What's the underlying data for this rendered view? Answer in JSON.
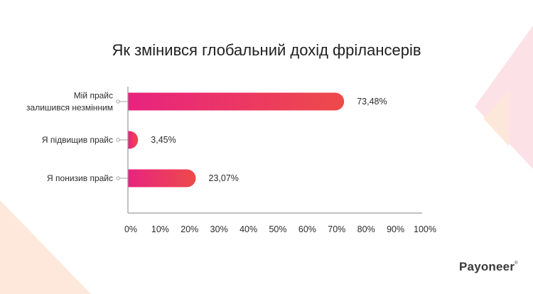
{
  "chart_data": {
    "type": "bar",
    "orientation": "horizontal",
    "title": "Як змінився глобальний дохід фрілансерів",
    "xlabel": "",
    "ylabel": "",
    "categories": [
      [
        "Мій прайс",
        "залишився незмінним"
      ],
      [
        "Я підвищив прайс"
      ],
      [
        "Я понизив прайс"
      ]
    ],
    "values": [
      73.48,
      3.45,
      23.07
    ],
    "value_labels": [
      "73,48%",
      "3,45%",
      "23,07%"
    ],
    "xlim": [
      0,
      100
    ],
    "ticks": [
      0,
      10,
      20,
      30,
      40,
      50,
      60,
      70,
      80,
      90,
      100
    ],
    "tick_labels": [
      "0%",
      "10%",
      "20%",
      "30%",
      "40%",
      "50%",
      "60%",
      "70%",
      "80%",
      "90%",
      "100%"
    ],
    "grid": false,
    "bar_gradient": [
      "#e8237f",
      "#ee4a4a"
    ]
  },
  "brand": {
    "logo_text": "Payoneer",
    "logo_mark": "®"
  },
  "colors": {
    "decor_pink": "#fbd6dc",
    "decor_peach": "#fde7d6",
    "axis": "#9a9a9a"
  }
}
